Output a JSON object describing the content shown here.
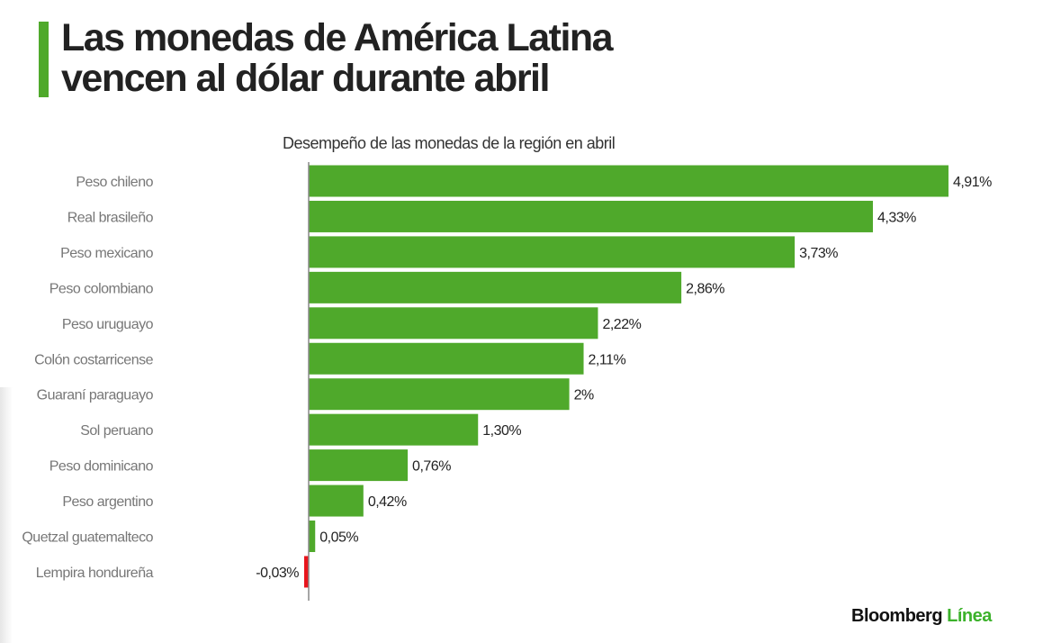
{
  "title_lines": [
    "Las monedas de América Latina",
    "vencen al dólar durante abril"
  ],
  "brand": {
    "name": "Bloomberg",
    "suffix": "Línea"
  },
  "colors": {
    "positive": "#4fa92b",
    "negative": "#e8141c",
    "accent": "#4fa92b"
  },
  "chart_data": {
    "type": "bar",
    "orientation": "horizontal",
    "title": "Desempeño de las  monedas de la región en abril",
    "categories": [
      "Peso chileno",
      "Real brasileño",
      "Peso mexicano",
      "Peso colombiano",
      "Peso uruguayo",
      "Colón costarricense",
      "Guaraní paraguayo",
      "Sol peruano",
      "Peso dominicano",
      "Peso argentino",
      "Quetzal guatemalteco",
      "Lempira hondureña"
    ],
    "values": [
      4.91,
      4.33,
      3.73,
      2.86,
      2.22,
      2.11,
      2,
      1.3,
      0.76,
      0.42,
      0.05,
      -0.03
    ],
    "labels": [
      "4,91%",
      "4,33%",
      "3,73%",
      "2,86%",
      "2,22%",
      "2,11%",
      "2%",
      "1,30%",
      "0,76%",
      "0,42%",
      "0,05%",
      "-0,03%"
    ],
    "unit": "%",
    "grid": false
  }
}
